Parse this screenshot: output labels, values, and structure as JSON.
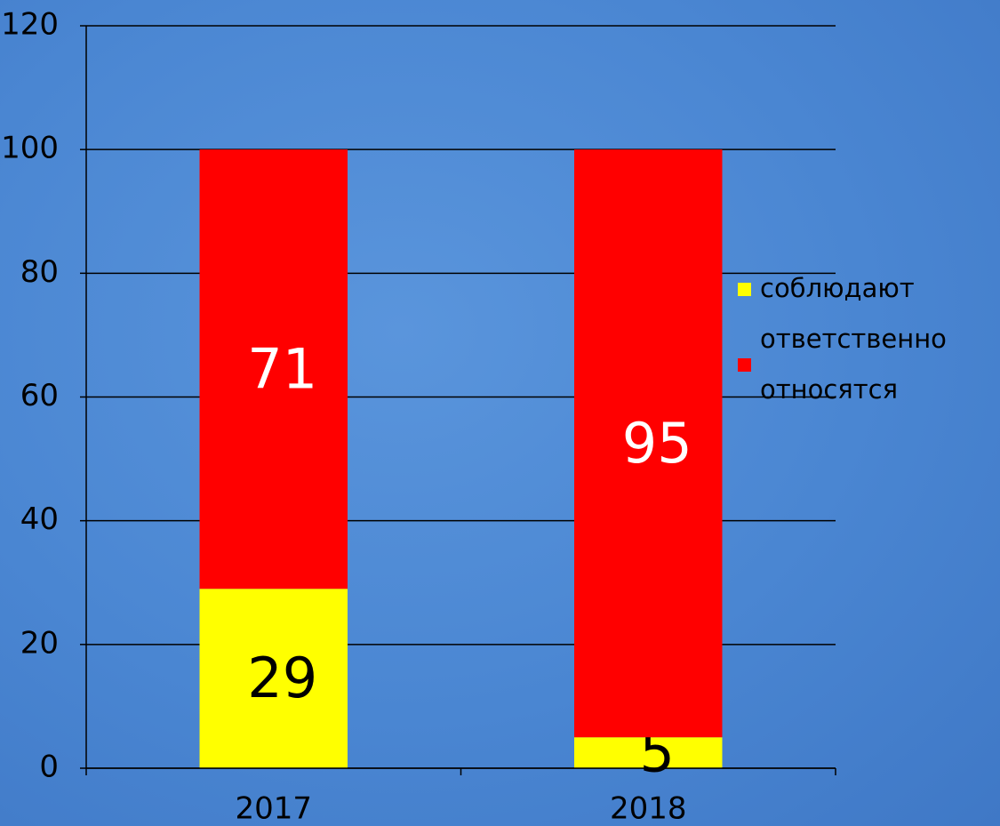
{
  "chart_data": {
    "type": "stacked_bar",
    "categories": [
      "2017",
      "2018"
    ],
    "series": [
      {
        "name": "соблюдают",
        "color": "#ffff00",
        "label_color": "#000000",
        "values": [
          29,
          5
        ]
      },
      {
        "name": "ответственно относятся",
        "color": "#ff0000",
        "label_color": "#ffffff",
        "values": [
          71,
          95
        ]
      }
    ],
    "ylim": [
      0,
      120
    ],
    "yticks": [
      0,
      20,
      40,
      60,
      80,
      100,
      120
    ],
    "grid": true,
    "legend": "right"
  }
}
